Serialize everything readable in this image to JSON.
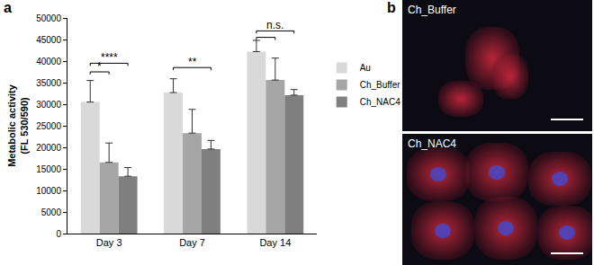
{
  "chart_data": {
    "type": "bar",
    "y_label": "Metabolic activity\n(FL 530/590)",
    "categories": [
      "Day 3",
      "Day 7",
      "Day 14"
    ],
    "series": [
      {
        "name": "Au",
        "color": "#d9d9d9",
        "values": [
          30500,
          32700,
          42200
        ],
        "errors": [
          5000,
          3200,
          2600
        ]
      },
      {
        "name": "Ch_Buffer",
        "color": "#a6a6a6",
        "values": [
          16500,
          23300,
          35600
        ],
        "errors": [
          4500,
          5500,
          5100
        ]
      },
      {
        "name": "Ch_NAC4",
        "color": "#7f7f7f",
        "values": [
          13300,
          19600,
          32100
        ],
        "errors": [
          2000,
          2000,
          1300
        ]
      }
    ],
    "ylim": [
      0,
      50000
    ],
    "yticks": [
      0,
      5000,
      10000,
      15000,
      20000,
      25000,
      30000,
      35000,
      40000,
      45000,
      50000
    ],
    "grid": false,
    "legend": "right",
    "significance": [
      {
        "category": "Day 3",
        "from": "Au",
        "to": "Ch_Buffer",
        "y": 37500,
        "text": "*"
      },
      {
        "category": "Day 3",
        "from": "Au",
        "to": "Ch_NAC4",
        "y": 39500,
        "text": "****"
      },
      {
        "category": "Day 7",
        "from": "Au",
        "to": "Ch_NAC4",
        "y": 38500,
        "text": "**"
      },
      {
        "category": "Day 14",
        "from": "Au",
        "to": "Ch_Buffer",
        "y": 45500
      },
      {
        "category": "Day 14",
        "from": "Au",
        "to": "Ch_NAC4",
        "y": 47000,
        "text": "n.s."
      }
    ]
  },
  "panel_labels": [
    "a",
    "b"
  ],
  "images": [
    {
      "label": "Ch_Buffer"
    },
    {
      "label": "Ch_NAC4"
    }
  ]
}
